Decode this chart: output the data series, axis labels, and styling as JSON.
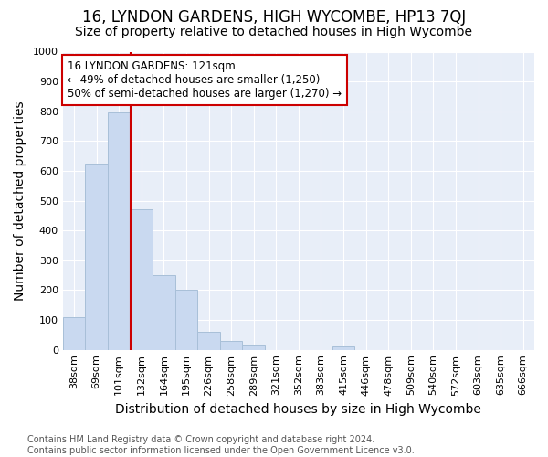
{
  "title": "16, LYNDON GARDENS, HIGH WYCOMBE, HP13 7QJ",
  "subtitle": "Size of property relative to detached houses in High Wycombe",
  "xlabel": "Distribution of detached houses by size in High Wycombe",
  "ylabel": "Number of detached properties",
  "categories": [
    "38sqm",
    "69sqm",
    "101sqm",
    "132sqm",
    "164sqm",
    "195sqm",
    "226sqm",
    "258sqm",
    "289sqm",
    "321sqm",
    "352sqm",
    "383sqm",
    "415sqm",
    "446sqm",
    "478sqm",
    "509sqm",
    "540sqm",
    "572sqm",
    "603sqm",
    "635sqm",
    "666sqm"
  ],
  "values": [
    110,
    625,
    795,
    470,
    250,
    200,
    60,
    30,
    15,
    0,
    0,
    0,
    10,
    0,
    0,
    0,
    0,
    0,
    0,
    0,
    0
  ],
  "bar_color": "#c9d9f0",
  "bar_edgecolor": "#a8bfd8",
  "line_color": "#cc0000",
  "annotation_line1": "16 LYNDON GARDENS: 121sqm",
  "annotation_line2": "← 49% of detached houses are smaller (1,250)",
  "annotation_line3": "50% of semi-detached houses are larger (1,270) →",
  "annotation_box_facecolor": "#ffffff",
  "annotation_box_edgecolor": "#cc0000",
  "ylim": [
    0,
    1000
  ],
  "yticks": [
    0,
    100,
    200,
    300,
    400,
    500,
    600,
    700,
    800,
    900,
    1000
  ],
  "footer_line1": "Contains HM Land Registry data © Crown copyright and database right 2024.",
  "footer_line2": "Contains public sector information licensed under the Open Government Licence v3.0.",
  "plot_bg_color": "#e8eef8",
  "fig_bg_color": "#ffffff",
  "title_fontsize": 12,
  "subtitle_fontsize": 10,
  "axis_label_fontsize": 10,
  "tick_fontsize": 8,
  "footer_fontsize": 7,
  "red_line_index": 2.5
}
